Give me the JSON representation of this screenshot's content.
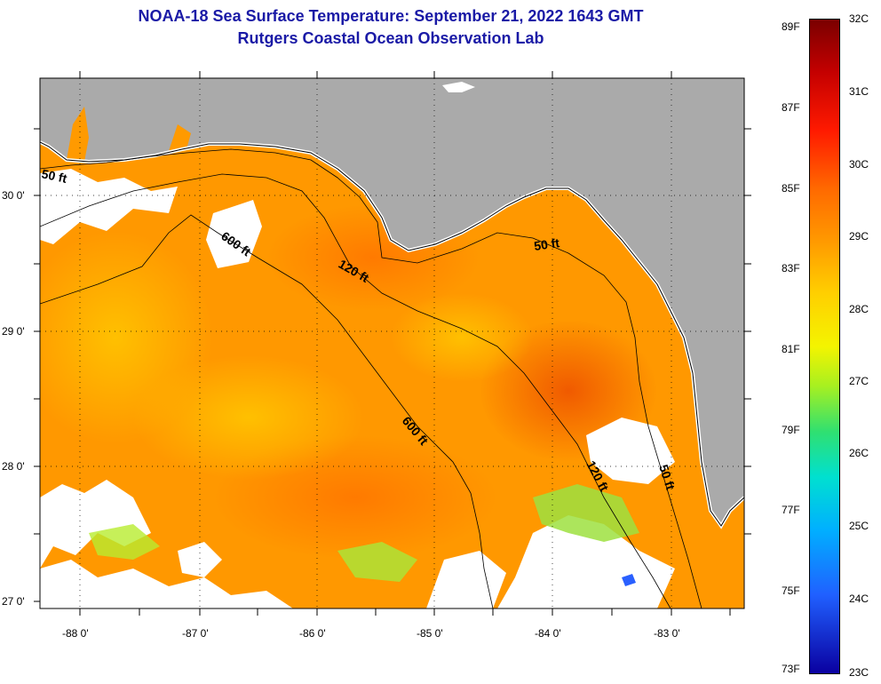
{
  "header": {
    "title": "NOAA-18 Sea Surface Temperature:  September 21, 2022 1643 GMT",
    "subtitle": "Rutgers Coastal Ocean Observation Lab"
  },
  "map": {
    "lat_labels": [
      "30 0'",
      "29 0'",
      "28 0'",
      "27 0'"
    ],
    "lon_labels": [
      "-88 0'",
      "-87 0'",
      "-86 0'",
      "-85 0'",
      "-84 0'",
      "-83 0'"
    ],
    "contour_labels": [
      "50 ft",
      "600 ft",
      "120 ft",
      "50 ft",
      "600 ft",
      "120 ft",
      "50 ft"
    ],
    "colors": {
      "land": "#aaaaaa",
      "sea_warm": "#ff9400",
      "cloud": "#ffffff",
      "contour": "#000000"
    }
  },
  "colorbar": {
    "fahrenheit": [
      "89F",
      "87F",
      "85F",
      "83F",
      "81F",
      "79F",
      "77F",
      "75F",
      "73F"
    ],
    "celsius": [
      "32C",
      "31C",
      "30C",
      "29C",
      "28C",
      "27C",
      "26C",
      "25C",
      "24C",
      "23C"
    ]
  }
}
